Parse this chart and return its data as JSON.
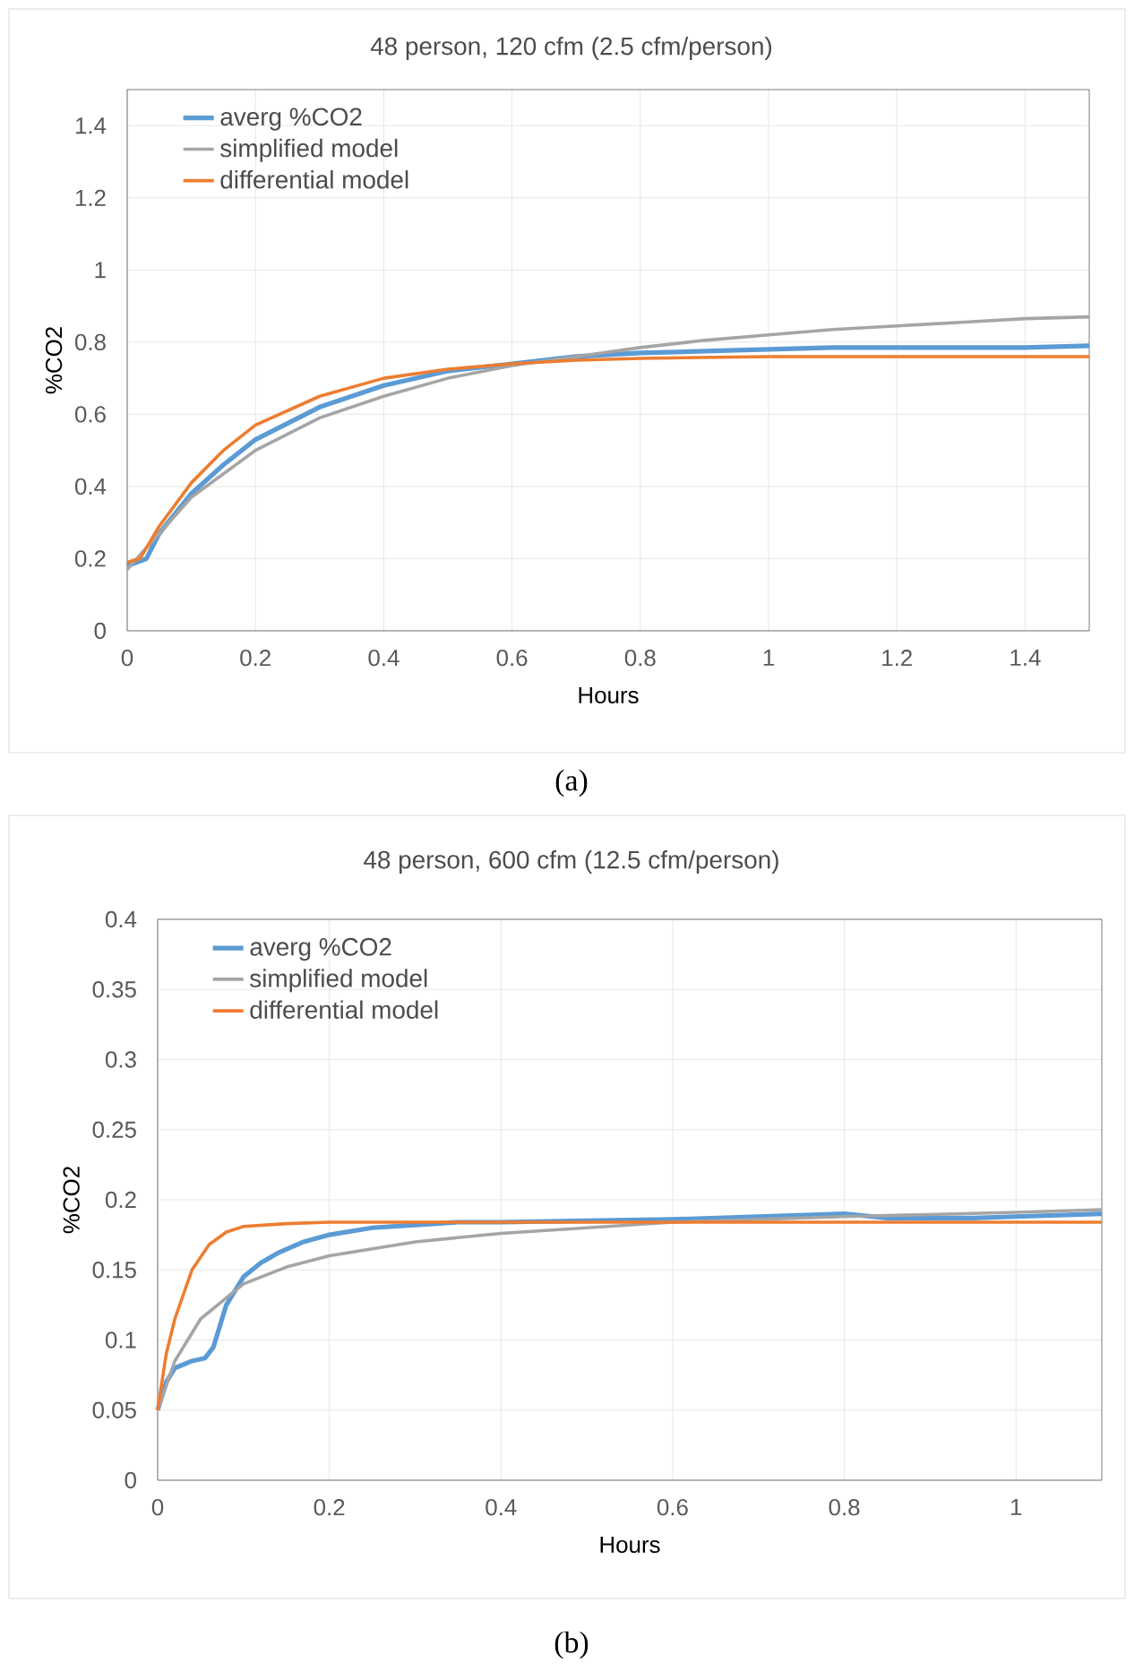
{
  "chart_data": [
    {
      "type": "line",
      "title": "48 person, 120 cfm (2.5 cfm/person)",
      "xlabel": "Hours",
      "ylabel": "%CO2",
      "xlim": [
        0,
        1.5
      ],
      "ylim": [
        0,
        1.5
      ],
      "xticks": [
        0,
        0.2,
        0.4,
        0.6,
        0.8,
        1,
        1.2,
        1.4
      ],
      "yticks": [
        0,
        0.2,
        0.4,
        0.6,
        0.8,
        1,
        1.2,
        1.4
      ],
      "grid": true,
      "legend": "top left",
      "annotations": [
        "(a)"
      ],
      "series": [
        {
          "name": "averg %CO2",
          "color": "#5b9bd5",
          "x": [
            0,
            0.03,
            0.05,
            0.1,
            0.15,
            0.2,
            0.3,
            0.4,
            0.5,
            0.6,
            0.7,
            0.8,
            0.9,
            1.0,
            1.1,
            1.2,
            1.3,
            1.4,
            1.5
          ],
          "values": [
            0.18,
            0.2,
            0.27,
            0.38,
            0.46,
            0.53,
            0.62,
            0.68,
            0.72,
            0.74,
            0.76,
            0.77,
            0.775,
            0.78,
            0.785,
            0.785,
            0.785,
            0.785,
            0.79
          ]
        },
        {
          "name": "simplified model",
          "color": "#a5a5a5",
          "x": [
            0,
            0.05,
            0.1,
            0.2,
            0.3,
            0.4,
            0.5,
            0.6,
            0.7,
            0.8,
            0.9,
            1.0,
            1.1,
            1.2,
            1.3,
            1.4,
            1.5
          ],
          "values": [
            0.17,
            0.27,
            0.37,
            0.5,
            0.59,
            0.65,
            0.7,
            0.735,
            0.76,
            0.785,
            0.805,
            0.82,
            0.835,
            0.845,
            0.855,
            0.865,
            0.87
          ]
        },
        {
          "name": "differential model",
          "color": "#ed7d31",
          "x": [
            0,
            0.02,
            0.05,
            0.1,
            0.15,
            0.2,
            0.3,
            0.4,
            0.5,
            0.6,
            0.7,
            0.8,
            1.0,
            1.5
          ],
          "values": [
            0.19,
            0.2,
            0.29,
            0.41,
            0.5,
            0.57,
            0.65,
            0.7,
            0.725,
            0.74,
            0.75,
            0.755,
            0.76,
            0.76
          ]
        }
      ]
    },
    {
      "type": "line",
      "title": "48 person, 600 cfm (12.5 cfm/person)",
      "xlabel": "Hours",
      "ylabel": "%CO2",
      "xlim": [
        0,
        1.1
      ],
      "ylim": [
        0,
        0.4
      ],
      "xticks": [
        0,
        0.2,
        0.4,
        0.6,
        0.8,
        1
      ],
      "yticks": [
        0,
        0.05,
        0.1,
        0.15,
        0.2,
        0.25,
        0.3,
        0.35,
        0.4
      ],
      "grid": true,
      "legend": "top left",
      "annotations": [
        "(b)"
      ],
      "series": [
        {
          "name": "averg %CO2",
          "color": "#5b9bd5",
          "x": [
            0,
            0.01,
            0.02,
            0.04,
            0.055,
            0.065,
            0.08,
            0.1,
            0.12,
            0.14,
            0.17,
            0.2,
            0.25,
            0.3,
            0.35,
            0.4,
            0.5,
            0.6,
            0.7,
            0.8,
            0.85,
            0.95,
            1.0,
            1.1
          ],
          "values": [
            0.05,
            0.07,
            0.08,
            0.085,
            0.087,
            0.095,
            0.125,
            0.145,
            0.155,
            0.162,
            0.17,
            0.175,
            0.18,
            0.182,
            0.184,
            0.184,
            0.185,
            0.186,
            0.188,
            0.19,
            0.187,
            0.187,
            0.188,
            0.19
          ]
        },
        {
          "name": "simplified model",
          "color": "#a5a5a5",
          "x": [
            0,
            0.02,
            0.05,
            0.1,
            0.15,
            0.2,
            0.3,
            0.4,
            0.5,
            0.6,
            0.8,
            1.0,
            1.1
          ],
          "values": [
            0.05,
            0.085,
            0.115,
            0.14,
            0.152,
            0.16,
            0.17,
            0.176,
            0.18,
            0.184,
            0.188,
            0.191,
            0.193
          ]
        },
        {
          "name": "differential model",
          "color": "#ed7d31",
          "x": [
            0,
            0.01,
            0.02,
            0.04,
            0.06,
            0.08,
            0.1,
            0.15,
            0.2,
            1.1
          ],
          "values": [
            0.05,
            0.09,
            0.115,
            0.15,
            0.168,
            0.177,
            0.181,
            0.183,
            0.184,
            0.184
          ]
        }
      ]
    }
  ]
}
